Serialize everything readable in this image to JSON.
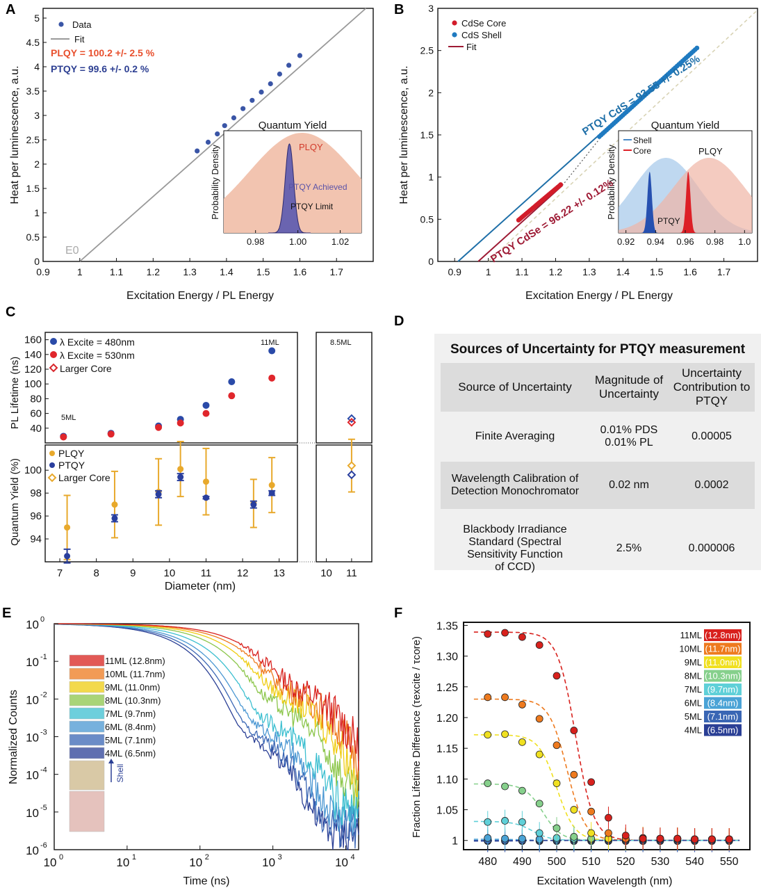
{
  "panels": {
    "A": "A",
    "B": "B",
    "C": "C",
    "D": "D",
    "E": "E",
    "F": "F"
  },
  "chart_data": [
    {
      "id": "A",
      "type": "scatter",
      "xlabel": "Excitation Energy / PL Energy",
      "ylabel": "Heat per luminescence, a.u.",
      "xlim": [
        0.9,
        1.8
      ],
      "ylim": [
        0,
        5.2
      ],
      "xticks": [
        "0.9",
        "1",
        "1.1",
        "1.2",
        "1.3",
        "1.4",
        "1.5",
        "1.6",
        "1.7"
      ],
      "yticks": [
        "0",
        "0.5",
        "1",
        "1.5",
        "2",
        "2.5",
        "3",
        "3.5",
        "4",
        "4.5",
        "5"
      ],
      "legend": [
        "Data",
        "Fit"
      ],
      "annotations": [
        "PLQY = 100.2 +/- 2.5 %",
        "PTQY = 99.6 +/- 0.2 %",
        "E0"
      ],
      "series": [
        {
          "name": "Data",
          "x": [
            1.32,
            1.35,
            1.375,
            1.395,
            1.42,
            1.445,
            1.47,
            1.495,
            1.52,
            1.545,
            1.57,
            1.6
          ],
          "y": [
            2.27,
            2.45,
            2.62,
            2.79,
            2.95,
            3.14,
            3.31,
            3.48,
            3.65,
            3.85,
            4.03,
            4.23
          ]
        },
        {
          "name": "Fit",
          "x": [
            1.0,
            1.78
          ],
          "y": [
            0.0,
            5.2
          ]
        }
      ],
      "inset": {
        "title": "Quantum Yield",
        "ylabel": "Probability Density",
        "xticks": [
          "0.98",
          "1.00",
          "1.02"
        ],
        "xlim": [
          0.965,
          1.03
        ],
        "labels": [
          "PLQY",
          "PTQY Achieved",
          "PTQY Limit"
        ],
        "plqy_center": 1.002,
        "plqy_sigma": 0.025,
        "ptqy_center": 0.996,
        "ptqy_sigma": 0.002
      }
    },
    {
      "id": "B",
      "type": "scatter",
      "xlabel": "Excitation Energy / PL Energy",
      "ylabel": "Heat per luminescence, a.u.",
      "xlim": [
        0.85,
        1.8
      ],
      "ylim": [
        0,
        3
      ],
      "xticks": [
        "0.9",
        "1",
        "1.1",
        "1.2",
        "1.3",
        "1.4",
        "1.5",
        "1.6",
        "1.7"
      ],
      "yticks": [
        "0",
        "0.5",
        "1",
        "1.5",
        "2",
        "2.5",
        "3"
      ],
      "legend": [
        "CdSe Core",
        "CdS  Shell",
        "Fit"
      ],
      "annotations": [
        "PTQY CdS = 93.55 +/- 0.25%",
        "PTQY CdSe = 96.22 +/- 0.12%"
      ],
      "series": [
        {
          "name": "CdSe Core",
          "x_range": [
            1.09,
            1.215
          ],
          "y_range": [
            0.49,
            0.91
          ]
        },
        {
          "name": "CdS  Shell",
          "x_range": [
            1.33,
            1.62
          ],
          "y_range": [
            1.48,
            2.53
          ]
        }
      ],
      "inset": {
        "title": "Quantum Yield",
        "ylabel": "Probability Density",
        "xticks": [
          "0.92",
          "0.94",
          "0.96",
          "0.98",
          "1.0"
        ],
        "xlim": [
          0.915,
          1.005
        ],
        "legend": [
          "Shell",
          "Core"
        ],
        "labels": [
          "PLQY",
          "PTQY"
        ],
        "shell_plqy_center": 0.947,
        "core_plqy_center": 0.976,
        "shell_ptqy_center": 0.936,
        "core_ptqy_center": 0.962
      }
    },
    {
      "id": "C",
      "type": "scatter",
      "xlabel": "Diameter (nm)",
      "top": {
        "ylabel": "PL Lifetime (ns)",
        "ylim": [
          20,
          170
        ],
        "yticks": [
          "40",
          "60",
          "80",
          "100",
          "120",
          "140",
          "160"
        ],
        "legend": [
          "λ Excite = 480nm",
          "λ Excite = 530nm",
          "Larger Core"
        ],
        "annotations": [
          "5ML",
          "11ML",
          "8.5ML"
        ],
        "series": [
          {
            "name": "λ Excite = 480nm",
            "x": [
              7.1,
              8.4,
              9.7,
              10.3,
              11.0,
              11.7,
              12.8
            ],
            "y": [
              29,
              33,
              43,
              52,
              71,
              103,
              145
            ]
          },
          {
            "name": "λ Excite = 530nm",
            "x": [
              7.1,
              8.4,
              9.7,
              10.3,
              11.0,
              11.7,
              12.8
            ],
            "y": [
              28,
              32,
              41,
              47,
              60,
              84,
              108
            ]
          }
        ],
        "larger_core": {
          "x": 11.0,
          "y480": 53,
          "y530": 48
        }
      },
      "bottom": {
        "ylabel": "Quantum Yield  (%)",
        "ylim": [
          92,
          102.2
        ],
        "yticks": [
          "94",
          "96",
          "98",
          "100"
        ],
        "legend": [
          "PLQY",
          "PTQY",
          "Larger Core"
        ],
        "series": [
          {
            "name": "PLQY",
            "x": [
              7.2,
              8.5,
              9.7,
              10.3,
              11.0,
              12.3,
              12.8
            ],
            "y": [
              95.0,
              97.0,
              98.1,
              100.1,
              99.0,
              97.1,
              98.7
            ],
            "err": [
              2.8,
              2.9,
              2.9,
              2.4,
              2.9,
              2.1,
              2.4
            ]
          },
          {
            "name": "PTQY",
            "x": [
              7.2,
              8.5,
              9.7,
              10.3,
              11.0,
              12.3,
              12.8
            ],
            "y": [
              92.5,
              95.8,
              97.9,
              99.4,
              97.6,
              97.0,
              98.0
            ],
            "err": [
              0.6,
              0.3,
              0.3,
              0.3,
              0.1,
              0.3,
              0.2
            ]
          }
        ],
        "larger_core": {
          "x": 11.0,
          "plqy": 100.4,
          "plqy_err": 2.3,
          "ptqy": 99.6,
          "ptqy_err": 0.3
        }
      },
      "xticks_main": [
        "7",
        "8",
        "9",
        "10",
        "11",
        "12",
        "13"
      ],
      "xticks_side": [
        "10",
        "11"
      ]
    },
    {
      "id": "E",
      "type": "line",
      "xlabel": "Time (ns)",
      "ylabel": "Normalized Counts",
      "xscale": "log",
      "yscale": "log",
      "xlim": [
        1,
        15000
      ],
      "ylim": [
        1e-06,
        1
      ],
      "xtick_base": [
        "10",
        "10",
        "10",
        "10",
        "10"
      ],
      "xtick_exp": [
        "0",
        "1",
        "2",
        "3",
        "4"
      ],
      "ytick_base": [
        "10",
        "10",
        "10",
        "10",
        "10",
        "10",
        "10"
      ],
      "ytick_exp": [
        "0",
        "-1",
        "-2",
        "-3",
        "-4",
        "-5",
        "-6"
      ],
      "shell_label": "Shell",
      "legend": [
        "11ML (12.8nm)",
        "10ML (11.7nm)",
        "9ML (11.0nm)",
        "8ML (10.3nm)",
        "7ML   (9.7nm)",
        "6ML   (8.4nm)",
        "5ML   (7.1nm)",
        "4ML   (6.5nm)"
      ],
      "series_colors": [
        "#d8211d",
        "#ee7a1e",
        "#efcc10",
        "#8cc64b",
        "#3cbfd0",
        "#4a97d2",
        "#3a66b4",
        "#2a3f95"
      ],
      "tau1_ns": [
        260,
        200,
        150,
        110,
        75,
        55,
        45,
        38
      ],
      "tail_amp": [
        0.05,
        0.04,
        0.03,
        0.02,
        0.008,
        0.006,
        0.004,
        0.003
      ],
      "tau2_ns": [
        2200,
        1900,
        1500,
        1000,
        700,
        500,
        420,
        380
      ],
      "floor": [
        5e-06,
        3e-06,
        3e-06,
        2e-05,
        1e-05,
        8e-06,
        4e-06,
        3e-06
      ]
    },
    {
      "id": "F",
      "type": "scatter",
      "xlabel": "Excitation Wavelength (nm)",
      "ylabel": "Fraction Lifetime Difference (τexcite / τcore)",
      "xlim": [
        473,
        556
      ],
      "ylim": [
        0.985,
        1.355
      ],
      "xticks": [
        "480",
        "490",
        "500",
        "510",
        "520",
        "530",
        "540",
        "550"
      ],
      "yticks": [
        "1",
        "1.05",
        "1.10",
        "1.15",
        "1.20",
        "1.25",
        "1.30",
        "1.35"
      ],
      "legend_names": [
        "11ML",
        "10ML",
        "9ML",
        "8ML",
        "7ML",
        "6ML",
        "5ML",
        "4ML"
      ],
      "legend_sizes": [
        "(12.8nm)",
        "(11.7nm)",
        "(11.0nm)",
        "(10.3nm)",
        "(9.7nm)",
        "(8.4nm)",
        "(7.1nm)",
        "(6.5nm)"
      ],
      "colors": [
        "#d8211d",
        "#ee7a1e",
        "#f0e020",
        "#86d08c",
        "#5fd0d8",
        "#4aa3d6",
        "#3a66b4",
        "#2a3f95"
      ],
      "x": [
        480,
        485,
        490,
        495,
        500,
        505,
        510,
        515,
        520,
        525,
        530,
        535,
        540,
        545,
        550
      ],
      "series": [
        {
          "name": "11ML",
          "y": [
            1.336,
            1.338,
            1.331,
            1.318,
            1.268,
            1.179,
            1.095,
            1.037,
            1.008,
            1.003,
            1.003,
            1.003,
            1.002,
            1.002,
            1.002
          ],
          "plateau": 1.339,
          "mid": 505.5
        },
        {
          "name": "10ML",
          "y": [
            1.233,
            1.233,
            1.221,
            1.198,
            1.155,
            1.107,
            1.047,
            1.012,
            1.003,
            1.004,
            1.003,
            1.003,
            1.002,
            1.002,
            1.002
          ],
          "plateau": 1.23,
          "mid": 503
        },
        {
          "name": "9ML",
          "y": [
            1.172,
            1.173,
            1.16,
            1.14,
            1.093,
            1.05,
            1.012,
            1.003,
            1.002,
            1.004,
            1.003,
            1.003,
            1.002,
            1.002,
            1.002
          ],
          "plateau": 1.172,
          "mid": 500
        },
        {
          "name": "8ML",
          "y": [
            1.093,
            1.088,
            1.081,
            1.06,
            1.02,
            1.006,
            1.003,
            1.004,
            1.002,
            1.004,
            1.003,
            1.003,
            1.002,
            1.002,
            1.002
          ],
          "plateau": 1.092,
          "mid": 496
        },
        {
          "name": "7ML",
          "y": [
            1.03,
            1.032,
            1.03,
            1.012,
            1.004,
            1.003,
            1.002,
            1.003,
            1.002,
            1.003,
            1.003,
            1.003,
            1.002,
            1.002,
            1.002
          ],
          "plateau": 1.031,
          "mid": 493
        },
        {
          "name": "6ML",
          "y": [
            1.004,
            1.003,
            1.003,
            1.002,
            1.002,
            1.002,
            1.002,
            1.002,
            1.002,
            1.002,
            1.002,
            1.002,
            1.002,
            1.002,
            1.002
          ],
          "plateau": 1.002,
          "mid": 490
        },
        {
          "name": "5ML",
          "y": [
            1.0,
            1.0,
            1.0,
            1.0,
            1.0,
            1.0,
            1.0,
            1.0,
            1.0,
            1.0,
            1.0,
            1.0,
            1.0,
            1.0,
            1.0
          ],
          "plateau": 1.0,
          "mid": 490
        },
        {
          "name": "4ML",
          "y": [
            0.999,
            0.999,
            0.999,
            0.999,
            0.999,
            0.999,
            0.999,
            0.999,
            0.999,
            0.999,
            0.999,
            0.999,
            0.999,
            0.999,
            0.999
          ],
          "plateau": 0.999,
          "mid": 490
        }
      ]
    }
  ],
  "table": {
    "title": "Sources of Uncertainty for PTQY measurement",
    "headers": [
      "Source of Uncertainty",
      "Magnitude of Uncertainty",
      "Uncertainty Contribution to PTQY"
    ],
    "rows": [
      [
        "Finite Averaging",
        "0.01% PDS 0.01% PL",
        "0.00005"
      ],
      [
        "Wavelength Calibration of Detection Monochromator",
        "0.02 nm",
        "0.0002"
      ],
      [
        "Blackbody Irradiance Standard (Spectral Sensitivity Function of CCD)",
        "2.5%",
        "0.000006"
      ]
    ]
  }
}
